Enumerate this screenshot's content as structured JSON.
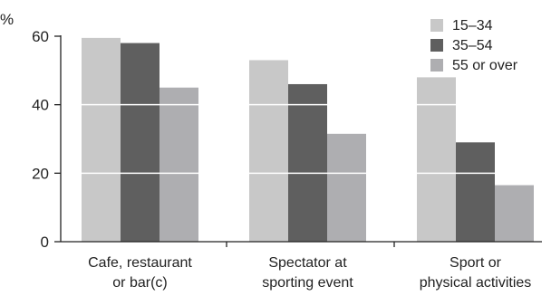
{
  "chart_data": {
    "type": "bar",
    "title": "",
    "xlabel": "",
    "ylabel": "%",
    "ylim": [
      0,
      60
    ],
    "yticks": [
      "0",
      "20",
      "40",
      "60"
    ],
    "grid": "horizontal, white, drawn over bars",
    "legend_position": "top-right",
    "categories": [
      [
        "Cafe, restaurant",
        "or bar(c)"
      ],
      [
        "Spectator at",
        "sporting event"
      ],
      [
        "Sport or",
        "physical activities"
      ]
    ],
    "series": [
      {
        "name": "15–34",
        "color": "#c8c8c8",
        "values": [
          59.5,
          53,
          48
        ]
      },
      {
        "name": "35–54",
        "color": "#5f5f5f",
        "values": [
          58,
          46,
          29
        ]
      },
      {
        "name": "55 or over",
        "color": "#aeaeb1",
        "values": [
          45,
          31.5,
          16.5
        ]
      }
    ]
  }
}
